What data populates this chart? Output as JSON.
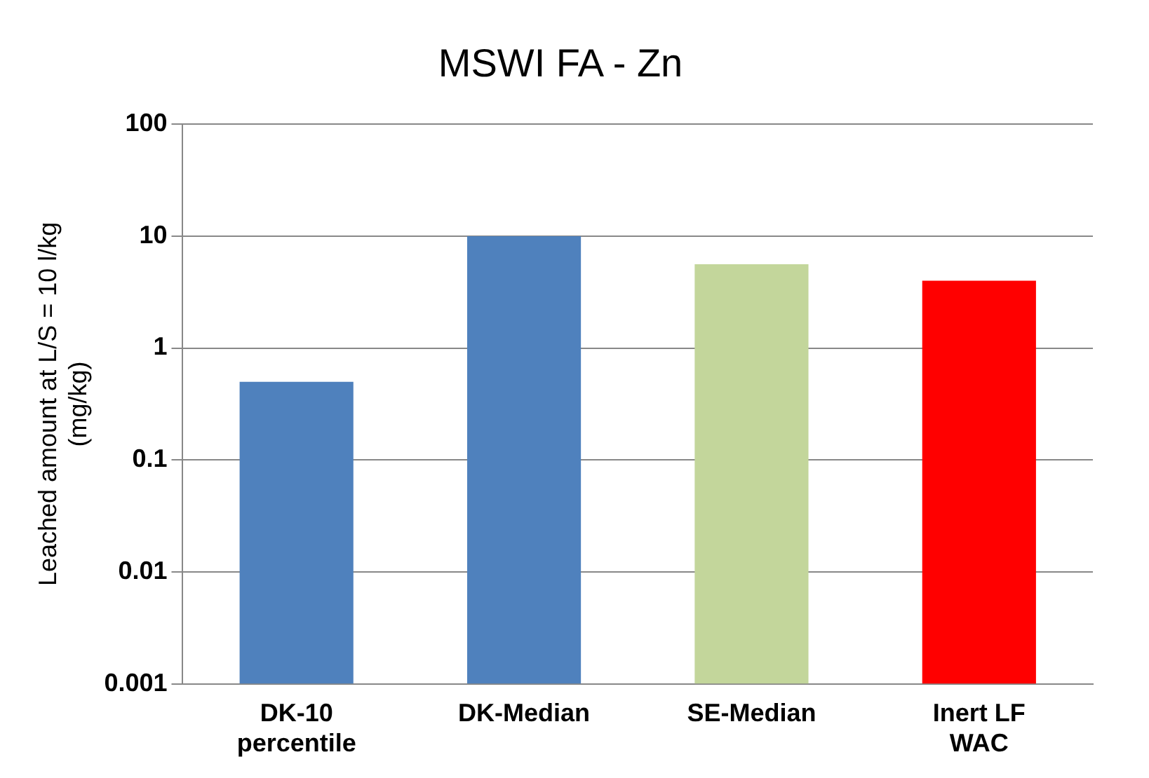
{
  "chart_data": {
    "type": "bar",
    "title": "MSWI FA - Zn",
    "ylabel": "Leached amount at L/S = 10 l/kg\n(mg/kg)",
    "categories": [
      "DK-10 percentile",
      "DK-Median",
      "SE-Median",
      "Inert LF WAC"
    ],
    "values": [
      0.5,
      10,
      5.6,
      4
    ],
    "colors": [
      "#4f81bd",
      "#4f81bd",
      "#c3d69b",
      "#ff0000"
    ],
    "log": "y",
    "ylim": [
      0.001,
      100
    ],
    "yticks": [
      0.001,
      0.01,
      0.1,
      1,
      10,
      100
    ],
    "grid": "y",
    "legend": false
  }
}
